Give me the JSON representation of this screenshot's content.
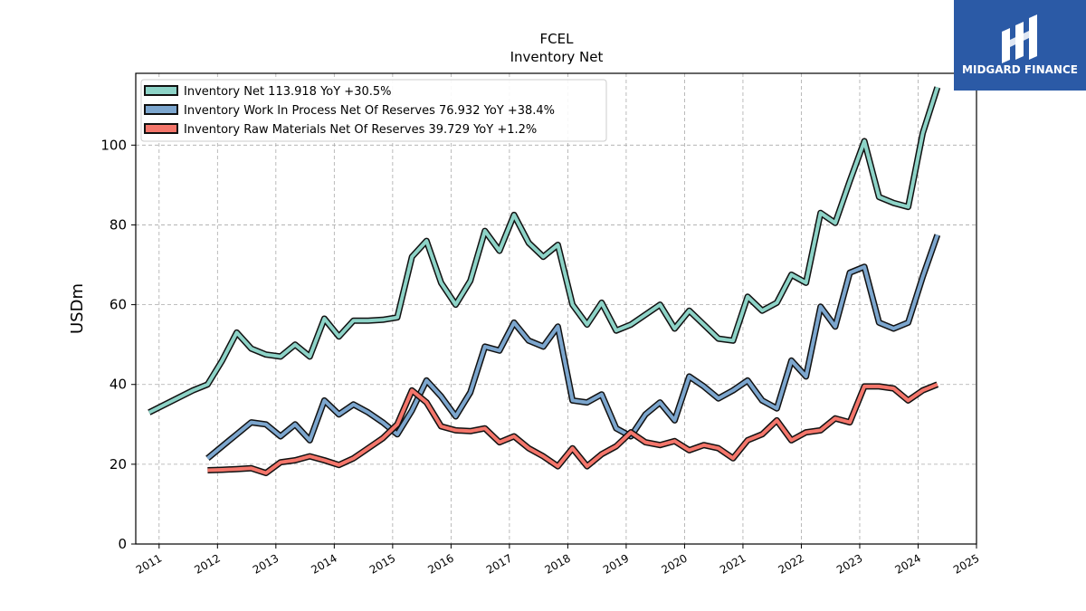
{
  "logo": {
    "text": "MIDGARD FINANCE",
    "background": "#2b5aa6"
  },
  "chart_data": {
    "type": "line",
    "title": "FCEL",
    "subtitle": "Inventory Net",
    "xlabel": "",
    "ylabel": "USDm",
    "xlim": [
      2010.6,
      2025.0
    ],
    "ylim": [
      0,
      118
    ],
    "yticks": [
      0,
      20,
      40,
      60,
      80,
      100
    ],
    "xticks": [
      "2011",
      "2012",
      "2013",
      "2014",
      "2015",
      "2016",
      "2017",
      "2018",
      "2019",
      "2020",
      "2021",
      "2022",
      "2023",
      "2024",
      "2025"
    ],
    "grid": true,
    "legend_position": "top-left",
    "series": [
      {
        "name": "Inventory Net  113.918 YoY +30.5%",
        "color": "#8dd3c7",
        "x": [
          2010.83,
          2011.58,
          2011.83,
          2012.08,
          2012.33,
          2012.58,
          2012.83,
          2013.08,
          2013.33,
          2013.58,
          2013.83,
          2014.08,
          2014.33,
          2014.58,
          2014.83,
          2015.08,
          2015.33,
          2015.58,
          2015.83,
          2016.08,
          2016.33,
          2016.58,
          2016.83,
          2017.08,
          2017.33,
          2017.58,
          2017.83,
          2018.08,
          2018.33,
          2018.58,
          2018.83,
          2019.08,
          2019.33,
          2019.58,
          2019.83,
          2020.08,
          2020.33,
          2020.58,
          2020.83,
          2021.08,
          2021.33,
          2021.58,
          2021.83,
          2022.08,
          2022.33,
          2022.58,
          2022.83,
          2023.08,
          2023.33,
          2023.58,
          2023.83,
          2024.08,
          2024.33
        ],
        "y": [
          33,
          38.5,
          40,
          46,
          53,
          49,
          47.5,
          47,
          50,
          47,
          56.5,
          52,
          56,
          56,
          56.2,
          56.8,
          72,
          76,
          65.5,
          60,
          66,
          78.5,
          73.5,
          82.5,
          75.5,
          72,
          75,
          60,
          55,
          60.5,
          53.5,
          55,
          57.5,
          60,
          54,
          58.5,
          55,
          51.5,
          51,
          62,
          58.5,
          60.5,
          67.5,
          65.5,
          83,
          80.5,
          91,
          101,
          87,
          85.5,
          84.5,
          103,
          114.5
        ]
      },
      {
        "name": "Inventory Work In Process Net Of Reserves  76.932 YoY +38.4%",
        "color": "#7ca6ce",
        "x": [
          2011.83,
          2012.08,
          2012.33,
          2012.58,
          2012.83,
          2013.08,
          2013.33,
          2013.58,
          2013.83,
          2014.08,
          2014.33,
          2014.58,
          2014.83,
          2015.08,
          2015.33,
          2015.58,
          2015.83,
          2016.08,
          2016.33,
          2016.58,
          2016.83,
          2017.08,
          2017.33,
          2017.58,
          2017.83,
          2018.08,
          2018.33,
          2018.58,
          2018.83,
          2019.08,
          2019.33,
          2019.58,
          2019.83,
          2020.08,
          2020.33,
          2020.58,
          2020.83,
          2021.08,
          2021.33,
          2021.58,
          2021.83,
          2022.08,
          2022.33,
          2022.58,
          2022.83,
          2023.08,
          2023.33,
          2023.58,
          2023.83,
          2024.08,
          2024.33
        ],
        "y": [
          21.5,
          24.5,
          27.5,
          30.5,
          30,
          27,
          30,
          26,
          36,
          32.5,
          35,
          33,
          30.5,
          27.5,
          33.5,
          41,
          37,
          32,
          38,
          49.5,
          48.5,
          55.5,
          51,
          49.5,
          54.5,
          36,
          35.5,
          37.5,
          29,
          27,
          32.5,
          35.5,
          31,
          42,
          39.5,
          36.5,
          38.5,
          41,
          36,
          34,
          46,
          42,
          59.5,
          54.5,
          68,
          69.5,
          55.5,
          54,
          55.5,
          67,
          77.5
        ]
      },
      {
        "name": "Inventory Raw Materials Net Of Reserves  39.729 YoY +1.2%",
        "color": "#f4766b",
        "x": [
          2011.83,
          2012.08,
          2012.33,
          2012.58,
          2012.83,
          2013.08,
          2013.33,
          2013.58,
          2013.83,
          2014.08,
          2014.33,
          2014.58,
          2014.83,
          2015.08,
          2015.33,
          2015.58,
          2015.83,
          2016.08,
          2016.33,
          2016.58,
          2016.83,
          2017.08,
          2017.33,
          2017.58,
          2017.83,
          2018.08,
          2018.33,
          2018.58,
          2018.83,
          2019.08,
          2019.33,
          2019.58,
          2019.83,
          2020.08,
          2020.33,
          2020.58,
          2020.83,
          2021.08,
          2021.33,
          2021.58,
          2021.83,
          2022.08,
          2022.33,
          2022.58,
          2022.83,
          2023.08,
          2023.33,
          2023.58,
          2023.83,
          2024.08,
          2024.33
        ],
        "y": [
          18.5,
          18.6,
          18.8,
          19,
          17.8,
          20.5,
          21,
          22,
          21,
          19.8,
          21.5,
          24,
          26.5,
          30,
          38.5,
          35.5,
          29.5,
          28.5,
          28.3,
          29,
          25.5,
          27,
          24,
          22,
          19.5,
          24,
          19.5,
          22.5,
          24.5,
          28,
          25.5,
          24.8,
          25.8,
          23.5,
          24.8,
          24,
          21.5,
          26,
          27.5,
          31,
          26,
          28,
          28.5,
          31.5,
          30.5,
          39.5,
          39.5,
          39,
          36,
          38.5,
          40
        ]
      }
    ]
  }
}
